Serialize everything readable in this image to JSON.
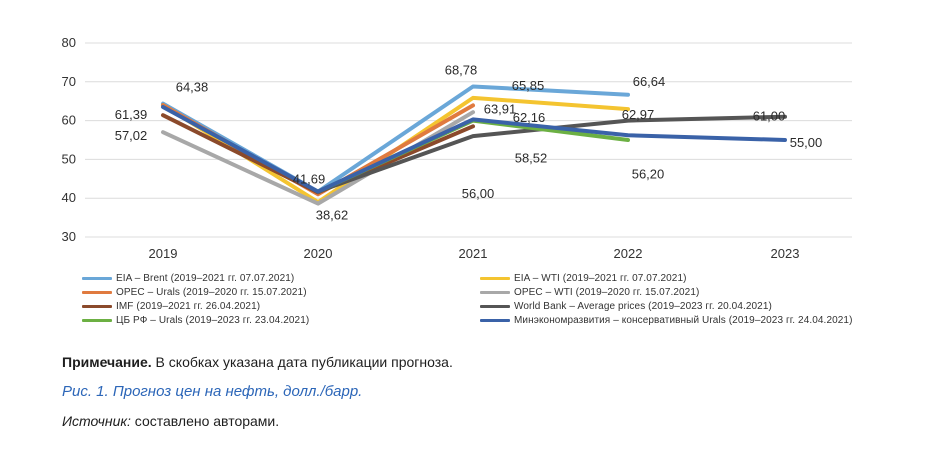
{
  "chart_data": {
    "type": "line",
    "categories": [
      "2019",
      "2020",
      "2021",
      "2022",
      "2023"
    ],
    "ylim": [
      30,
      80
    ],
    "yticks": [
      30,
      40,
      50,
      60,
      70,
      80
    ],
    "grid": true,
    "legend_position": "bottom",
    "series": [
      {
        "name": "EIA – Brent (2019–2021 гг. 07.07.2021)",
        "color": "#6aa7d8",
        "values": [
          64.38,
          41.69,
          68.78,
          66.64,
          null
        ]
      },
      {
        "name": "EIA – WTI (2019–2021 гг. 07.07.2021)",
        "color": "#f4c430",
        "values": [
          64.0,
          39.0,
          65.85,
          62.97,
          null
        ]
      },
      {
        "name": "OPEC – Urals (2019–2020 гг. 15.07.2021)",
        "color": "#e07a3f",
        "values": [
          64.0,
          41.0,
          63.91,
          null,
          null
        ]
      },
      {
        "name": "OPEC – WTI (2019–2020 гг. 15.07.2021)",
        "color": "#a8a8a8",
        "values": [
          57.02,
          38.62,
          62.16,
          null,
          null
        ]
      },
      {
        "name": "IMF (2019–2021 гг. 26.04.2021)",
        "color": "#8b4a2b",
        "values": [
          61.39,
          41.5,
          58.52,
          null,
          null
        ]
      },
      {
        "name": "World Bank – Average prices (2019–2023 гг. 20.04.2021)",
        "color": "#555555",
        "values": [
          null,
          41.69,
          56.0,
          60.0,
          61.0
        ]
      },
      {
        "name": "ЦБ РФ – Urals (2019–2023 гг. 23.04.2021)",
        "color": "#6cb043",
        "values": [
          null,
          41.69,
          60.0,
          55.0,
          null
        ]
      },
      {
        "name": "Минэкономразвития – консервативный Urals (2019–2023 гг. 24.04.2021)",
        "color": "#3a62a8",
        "values": [
          63.5,
          41.69,
          60.3,
          56.2,
          55.0
        ]
      }
    ],
    "data_labels": [
      {
        "text": "64,38",
        "x": 0,
        "y": 64.38
      },
      {
        "text": "61,39",
        "x": 0,
        "y": 61.39
      },
      {
        "text": "57,02",
        "x": 0,
        "y": 57.02
      },
      {
        "text": "41,69",
        "x": 1,
        "y": 41.69
      },
      {
        "text": "38,62",
        "x": 1,
        "y": 38.62
      },
      {
        "text": "68,78",
        "x": 2,
        "y": 68.78
      },
      {
        "text": "65,85",
        "x": 2,
        "y": 65.85
      },
      {
        "text": "63,91",
        "x": 2,
        "y": 63.91
      },
      {
        "text": "62,16",
        "x": 2,
        "y": 62.16
      },
      {
        "text": "58,52",
        "x": 2,
        "y": 58.52
      },
      {
        "text": "56,00",
        "x": 2,
        "y": 56.0
      },
      {
        "text": "66,64",
        "x": 3,
        "y": 66.64
      },
      {
        "text": "62,97",
        "x": 3,
        "y": 62.97
      },
      {
        "text": "56,20",
        "x": 3,
        "y": 56.2
      },
      {
        "text": "61,00",
        "x": 4,
        "y": 61.0
      },
      {
        "text": "55,00",
        "x": 4,
        "y": 55.0
      }
    ]
  },
  "note": {
    "bold": "Примечание.",
    "text": " В скобках указана дата публикации прогноза."
  },
  "caption": "Рис. 1. Прогноз цен на нефть, долл./барр.",
  "source": {
    "label": "Источник:",
    "text": " составлено авторами."
  }
}
